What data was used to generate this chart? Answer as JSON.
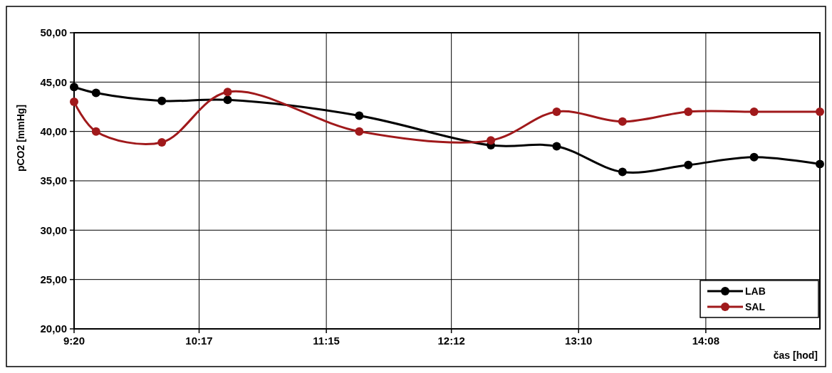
{
  "chart_data": {
    "type": "line",
    "xlabel": "čas [hod]",
    "ylabel": "pCO2 [mmHg]",
    "xlim": [
      9.3333,
      15
    ],
    "ylim": [
      20,
      50
    ],
    "xticks": [
      {
        "value": 9.3333,
        "label": "9:20"
      },
      {
        "value": 10.2833,
        "label": "10:17"
      },
      {
        "value": 11.25,
        "label": "11:15"
      },
      {
        "value": 12.2,
        "label": "12:12"
      },
      {
        "value": 13.1667,
        "label": "13:10"
      },
      {
        "value": 14.1333,
        "label": "14:08"
      }
    ],
    "yticks": [
      {
        "value": 20,
        "label": "20,00"
      },
      {
        "value": 25,
        "label": "25,00"
      },
      {
        "value": 30,
        "label": "30,00"
      },
      {
        "value": 35,
        "label": "35,00"
      },
      {
        "value": 40,
        "label": "40,00"
      },
      {
        "value": 45,
        "label": "45,00"
      },
      {
        "value": 50,
        "label": "50,00"
      }
    ],
    "x": [
      9.3333,
      9.5,
      10,
      10.5,
      11.5,
      12.5,
      13,
      13.5,
      14,
      14.5,
      15
    ],
    "series": [
      {
        "name": "LAB",
        "color": "#000000",
        "values": [
          44.5,
          43.9,
          43.1,
          43.2,
          41.6,
          38.6,
          38.5,
          35.9,
          36.6,
          37.4,
          36.7
        ]
      },
      {
        "name": "SAL",
        "color": "#a0191b",
        "values": [
          43.0,
          40.0,
          38.9,
          44.0,
          40.0,
          39.1,
          42.0,
          41.0,
          42.0,
          42.0,
          42.0
        ]
      }
    ],
    "grid": true,
    "legend": "bottom right",
    "marker": "circle",
    "line_style": "solid"
  }
}
